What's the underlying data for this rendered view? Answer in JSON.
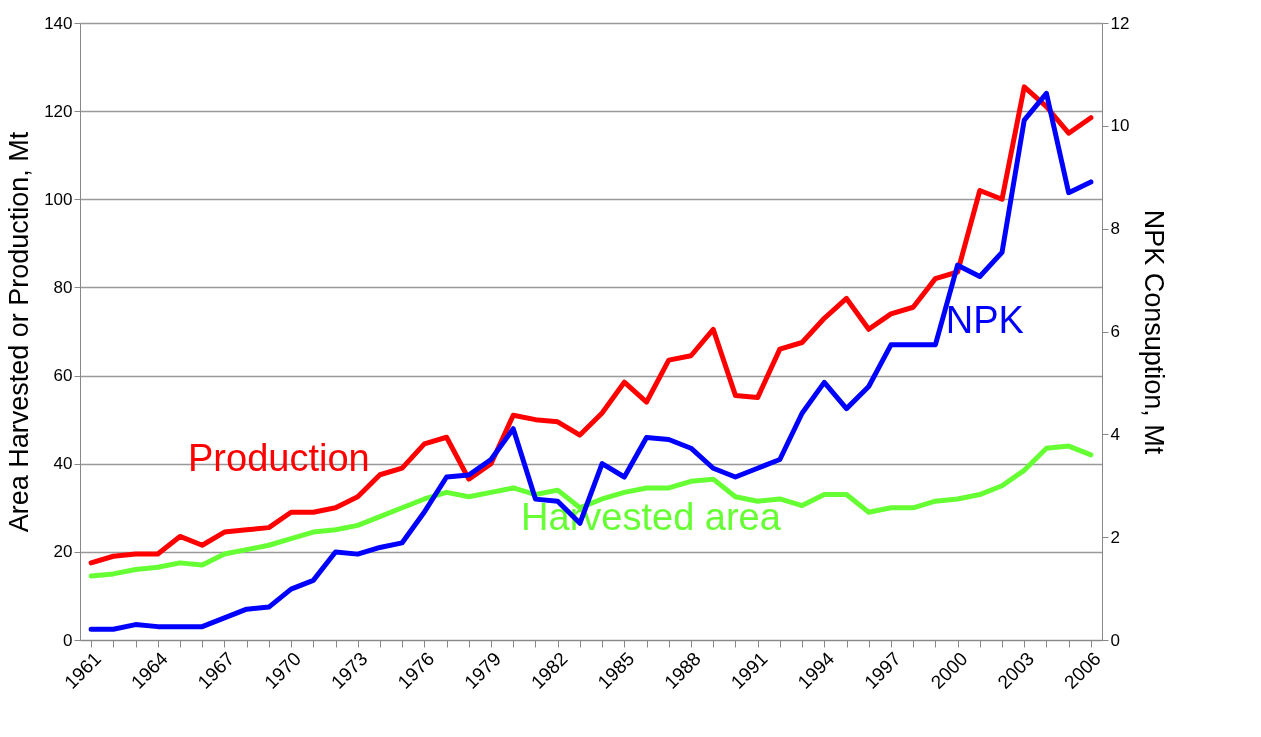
{
  "chart_data": {
    "type": "line",
    "ylabel": "Area Harvested or Production, Mt",
    "y2label": "NPK Consuption, Mt",
    "categories": [
      "1961",
      null,
      null,
      "1964",
      null,
      null,
      "1967",
      null,
      null,
      "1970",
      null,
      null,
      "1973",
      null,
      null,
      "1976",
      null,
      null,
      "1979",
      null,
      null,
      "1982",
      null,
      null,
      "1985",
      null,
      null,
      "1988",
      null,
      null,
      "1991",
      null,
      null,
      "1994",
      null,
      null,
      "1997",
      null,
      null,
      "2000",
      null,
      null,
      "2003",
      null,
      null,
      "2006"
    ],
    "series": [
      {
        "name": "Production",
        "color": "#ff0000",
        "values": [
          17.5,
          19,
          19.5,
          19.5,
          23.5,
          21.5,
          24.5,
          25,
          25.5,
          29,
          29,
          30,
          32.5,
          37.5,
          39,
          44.5,
          46,
          36.5,
          40,
          51,
          50,
          49.5,
          46.5,
          51.5,
          58.5,
          54,
          63.5,
          64.5,
          70.5,
          55.5,
          55,
          66,
          67.5,
          73,
          77.5,
          70.5,
          74,
          75.5,
          82,
          83.5,
          102,
          100,
          125.5,
          121,
          115,
          118.5
        ]
      },
      {
        "name": "Harvested area",
        "color": "#66ff33",
        "values": [
          14.5,
          15,
          16,
          16.5,
          17.5,
          17,
          19.5,
          20.5,
          21.5,
          23,
          24.5,
          25,
          26,
          28,
          30,
          32,
          33.5,
          32.5,
          33.5,
          34.5,
          33,
          34,
          30,
          32,
          33.5,
          34.5,
          34.5,
          36,
          36.5,
          32.5,
          31.5,
          32,
          30.5,
          33,
          33,
          29,
          30,
          30,
          31.5,
          32,
          33,
          35,
          38.5,
          43.5,
          44,
          42
        ]
      },
      {
        "name": "NPK",
        "color": "#0000ff",
        "axis": "y2",
        "values": [
          0.21,
          0.21,
          0.3,
          0.26,
          0.26,
          0.26,
          0.43,
          0.6,
          0.64,
          0.99,
          1.16,
          1.71,
          1.67,
          1.8,
          1.89,
          2.49,
          3.17,
          3.21,
          3.51,
          4.11,
          2.74,
          2.7,
          2.27,
          3.43,
          3.17,
          3.94,
          3.9,
          3.73,
          3.34,
          3.17,
          3.34,
          3.51,
          4.41,
          5.01,
          4.5,
          4.93,
          5.74,
          5.74,
          5.74,
          7.29,
          7.07,
          7.54,
          10.11,
          10.63,
          8.7,
          8.91
        ]
      }
    ],
    "ylim": [
      0,
      140
    ],
    "yticks": [
      0,
      20,
      40,
      60,
      80,
      100,
      120,
      140
    ],
    "y2lim": [
      0,
      12
    ],
    "y2ticks": [
      0,
      2,
      4,
      6,
      8,
      10,
      12
    ],
    "grid": "y",
    "legend": false
  }
}
